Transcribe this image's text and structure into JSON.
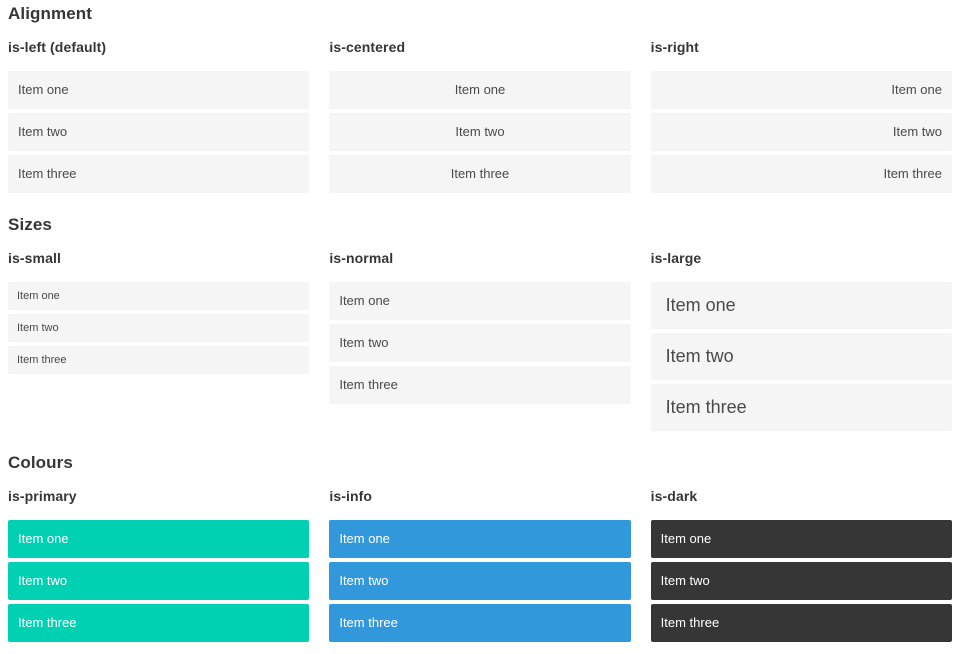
{
  "colors": {
    "page_background": "#ffffff",
    "heading_text": "#363636",
    "item_background": "#f5f5f5",
    "item_text": "#4a4a4a",
    "primary": "#00d1b2",
    "info": "#3298dc",
    "dark": "#363636",
    "colored_item_text": "#ffffff"
  },
  "sections": [
    {
      "title": "Alignment",
      "variants": [
        {
          "label": "is-left (default)",
          "modifier": "align-left",
          "items": [
            "Item one",
            "Item two",
            "Item three"
          ]
        },
        {
          "label": "is-centered",
          "modifier": "align-center",
          "items": [
            "Item one",
            "Item two",
            "Item three"
          ]
        },
        {
          "label": "is-right",
          "modifier": "align-right",
          "items": [
            "Item one",
            "Item two",
            "Item three"
          ]
        }
      ]
    },
    {
      "title": "Sizes",
      "variants": [
        {
          "label": "is-small",
          "modifier": "size-small",
          "items": [
            "Item one",
            "Item two",
            "Item three"
          ]
        },
        {
          "label": "is-normal",
          "modifier": "size-normal",
          "items": [
            "Item one",
            "Item two",
            "Item three"
          ]
        },
        {
          "label": "is-large",
          "modifier": "size-large",
          "items": [
            "Item one",
            "Item two",
            "Item three"
          ]
        }
      ]
    },
    {
      "title": "Colours",
      "variants": [
        {
          "label": "is-primary",
          "modifier": "color-primary",
          "items": [
            "Item one",
            "Item two",
            "Item three"
          ]
        },
        {
          "label": "is-info",
          "modifier": "color-info",
          "items": [
            "Item one",
            "Item two",
            "Item three"
          ]
        },
        {
          "label": "is-dark",
          "modifier": "color-dark",
          "items": [
            "Item one",
            "Item two",
            "Item three"
          ]
        }
      ]
    }
  ]
}
